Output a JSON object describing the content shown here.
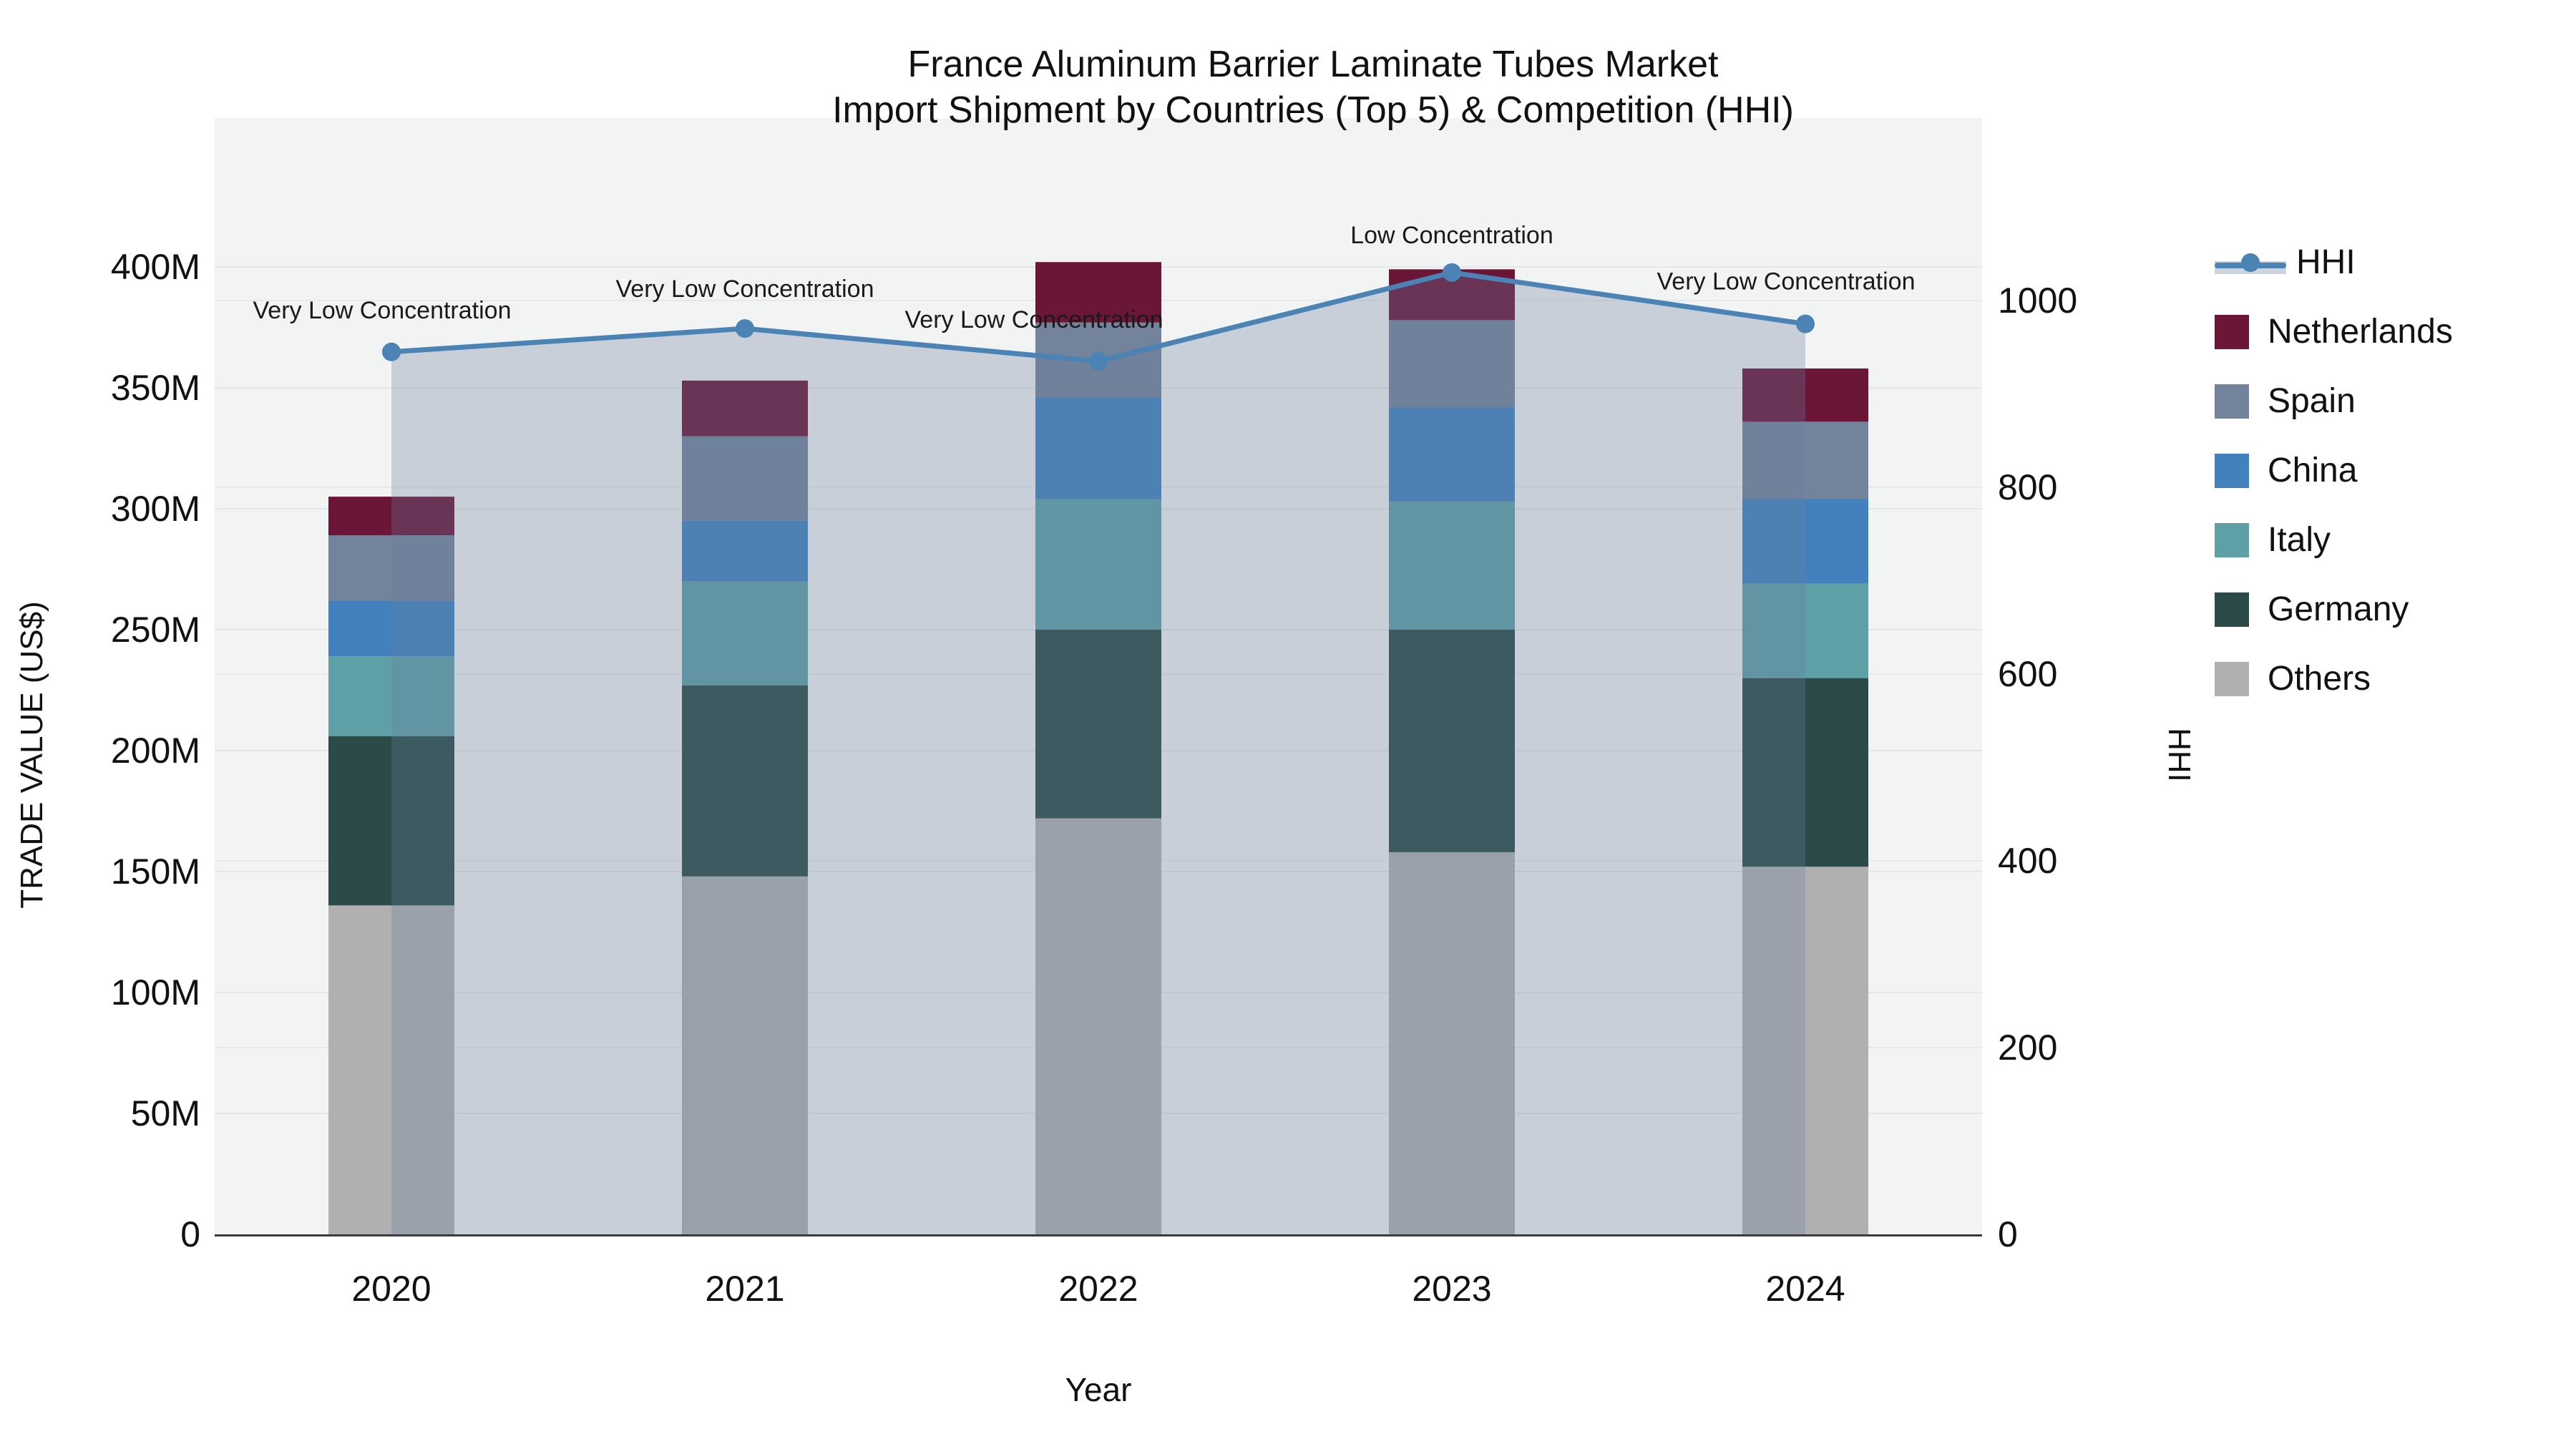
{
  "title": {
    "line1": "France Aluminum Barrier Laminate Tubes Market",
    "line2": "Import Shipment by Countries (Top 5) & Competition (HHI)"
  },
  "axes": {
    "y_left": {
      "title": "TRADE VALUE (US$)",
      "tick_labels": [
        "0",
        "50M",
        "100M",
        "150M",
        "200M",
        "250M",
        "300M",
        "350M",
        "400M"
      ],
      "tick_values_millions": [
        0,
        50,
        100,
        150,
        200,
        250,
        300,
        350,
        400
      ]
    },
    "y_right": {
      "title": "HHI",
      "tick_labels": [
        "0",
        "200",
        "400",
        "600",
        "800",
        "1000"
      ],
      "tick_values": [
        0,
        200,
        400,
        600,
        800,
        1000
      ]
    },
    "x": {
      "title": "Year",
      "categories": [
        "2020",
        "2021",
        "2022",
        "2023",
        "2024"
      ]
    }
  },
  "legend": [
    {
      "label": "HHI",
      "type": "line",
      "color": "#4a83b4"
    },
    {
      "label": "Netherlands",
      "type": "square",
      "color": "#6b1537"
    },
    {
      "label": "Spain",
      "type": "square",
      "color": "#73839b"
    },
    {
      "label": "China",
      "type": "square",
      "color": "#4281be"
    },
    {
      "label": "Italy",
      "type": "square",
      "color": "#5fa0a6"
    },
    {
      "label": "Germany",
      "type": "square",
      "color": "#2c4b48"
    },
    {
      "label": "Others",
      "type": "square",
      "color": "#b0b0b0"
    }
  ],
  "chart_data": {
    "type": "bar+line",
    "categories": [
      "2020",
      "2021",
      "2022",
      "2023",
      "2024"
    ],
    "bar_unit": "million US$",
    "stack_order_bottom_to_top": [
      "Others",
      "Germany",
      "Italy",
      "China",
      "Spain",
      "Netherlands"
    ],
    "series": [
      {
        "name": "Netherlands",
        "color": "#6b1537",
        "values": [
          16,
          23,
          25,
          21,
          22
        ]
      },
      {
        "name": "Spain",
        "color": "#73839b",
        "values": [
          27,
          35,
          31,
          36,
          32
        ]
      },
      {
        "name": "China",
        "color": "#4281be",
        "values": [
          23,
          25,
          42,
          39,
          35
        ]
      },
      {
        "name": "Italy",
        "color": "#5fa0a6",
        "values": [
          33,
          43,
          54,
          53,
          39
        ]
      },
      {
        "name": "Germany",
        "color": "#2c4b48",
        "values": [
          70,
          79,
          78,
          92,
          78
        ]
      },
      {
        "name": "Others",
        "color": "#b0b0b0",
        "values": [
          136,
          148,
          172,
          158,
          152
        ]
      }
    ],
    "bar_totals": [
      305,
      353,
      402,
      399,
      358
    ],
    "line": {
      "name": "HHI",
      "axis": "right",
      "color": "#4a83b4",
      "fill_color": "rgba(104,126,156,0.30)",
      "values": [
        945,
        970,
        935,
        1030,
        975
      ],
      "annotations": [
        "Very Low Concentration",
        "Very Low Concentration",
        "Very Low Concentration",
        "Low Concentration",
        "Very Low Concentration"
      ]
    },
    "ylim_left_millions": [
      0,
      400
    ],
    "ylim_right": [
      0,
      1000
    ],
    "grid": true,
    "legend_position": "right"
  }
}
